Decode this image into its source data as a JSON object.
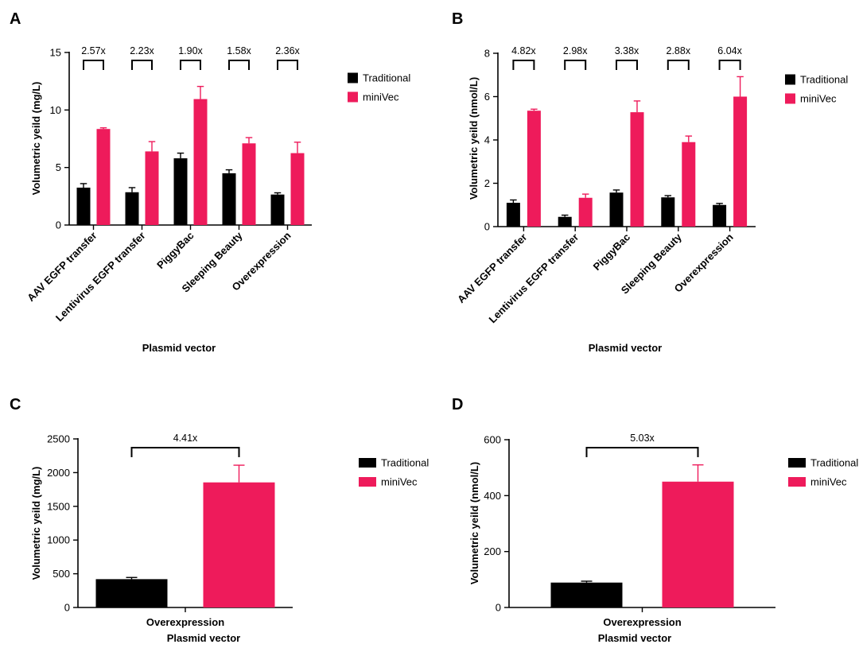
{
  "colors": {
    "Traditional": "#000000",
    "miniVec": "#ee1b5b"
  },
  "chart_data": [
    {
      "panel": "A",
      "type": "bar",
      "title": "",
      "xlabel": "Plasmid vector",
      "ylabel": "Volumetric yeild (mg/L)",
      "ylim": [
        0,
        15
      ],
      "yticks": [
        0,
        5,
        10,
        15
      ],
      "categories": [
        "AAV EGFP transfer",
        "Lentivirus EGFP transfer",
        "PiggyBac",
        "Sleeping Beauty",
        "Overexpression"
      ],
      "series": [
        {
          "name": "Traditional",
          "values": [
            3.25,
            2.85,
            5.8,
            4.5,
            2.65
          ],
          "errors": [
            0.35,
            0.4,
            0.45,
            0.3,
            0.15
          ]
        },
        {
          "name": "miniVec",
          "values": [
            8.35,
            6.4,
            10.95,
            7.1,
            6.25
          ],
          "errors": [
            0.1,
            0.85,
            1.1,
            0.5,
            0.95
          ]
        }
      ],
      "fold_changes": [
        "2.57x",
        "2.23x",
        "1.90x",
        "1.58x",
        "2.36x"
      ],
      "legend": [
        "Traditional",
        "miniVec"
      ],
      "legend_position": "right"
    },
    {
      "panel": "B",
      "type": "bar",
      "title": "",
      "xlabel": "Plasmid vector",
      "ylabel": "Volumetric yeild (nmol/L)",
      "ylim": [
        0,
        8
      ],
      "yticks": [
        0,
        2,
        4,
        6,
        8
      ],
      "categories": [
        "AAV EGFP transfer",
        "Lentivirus EGFP transfer",
        "PiggyBac",
        "Sleeping Beauty",
        "Overexpression"
      ],
      "series": [
        {
          "name": "Traditional",
          "values": [
            1.1,
            0.45,
            1.57,
            1.35,
            1.0
          ],
          "errors": [
            0.13,
            0.08,
            0.12,
            0.08,
            0.07
          ]
        },
        {
          "name": "miniVec",
          "values": [
            5.35,
            1.33,
            5.28,
            3.9,
            6.0
          ],
          "errors": [
            0.07,
            0.17,
            0.52,
            0.28,
            0.92
          ]
        }
      ],
      "fold_changes": [
        "4.82x",
        "2.98x",
        "3.38x",
        "2.88x",
        "6.04x"
      ],
      "legend": [
        "Traditional",
        "miniVec"
      ],
      "legend_position": "right"
    },
    {
      "panel": "C",
      "type": "bar",
      "title": "",
      "xlabel": "Plasmid vector",
      "ylabel": "Volumetric yeild (mg/L)",
      "ylim": [
        0,
        2500
      ],
      "yticks": [
        0,
        500,
        1000,
        1500,
        2000,
        2500
      ],
      "categories": [
        "Overexpression"
      ],
      "series": [
        {
          "name": "Traditional",
          "values": [
            420
          ],
          "errors": [
            25
          ]
        },
        {
          "name": "miniVec",
          "values": [
            1855
          ],
          "errors": [
            255
          ]
        }
      ],
      "fold_changes": [
        "4.41x"
      ],
      "legend": [
        "Traditional",
        "miniVec"
      ],
      "legend_position": "right"
    },
    {
      "panel": "D",
      "type": "bar",
      "title": "",
      "xlabel": "Plasmid vector",
      "ylabel": "Volumetric yeild (nmol/L)",
      "ylim": [
        0,
        600
      ],
      "yticks": [
        0,
        200,
        400,
        600
      ],
      "categories": [
        "Overexpression"
      ],
      "series": [
        {
          "name": "Traditional",
          "values": [
            89
          ],
          "errors": [
            5
          ]
        },
        {
          "name": "miniVec",
          "values": [
            450
          ],
          "errors": [
            60
          ]
        }
      ],
      "fold_changes": [
        "5.03x"
      ],
      "legend": [
        "Traditional",
        "miniVec"
      ],
      "legend_position": "right"
    }
  ]
}
